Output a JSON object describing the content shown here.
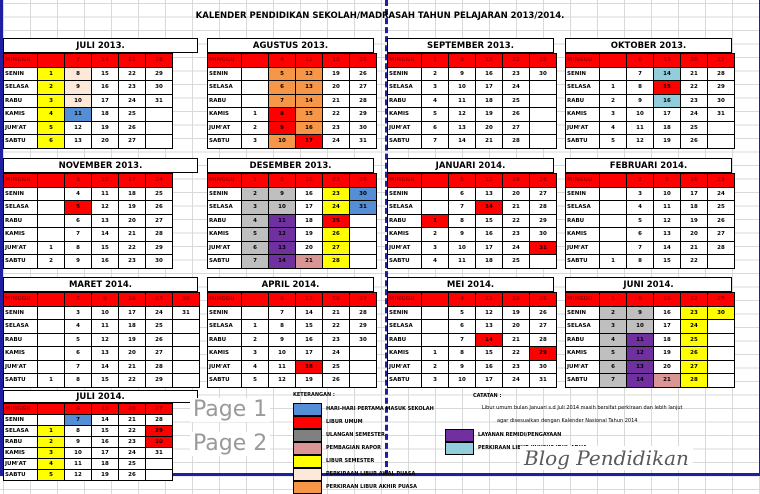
{
  "title": "KALENDER PENDIDIKAN SEKOLAH/MADRASAH TAHUN PELAJARAN 2013/2014.",
  "row_labels": [
    "MINGGU",
    "SENIN",
    "SELASA",
    "RABU",
    "KAMIS",
    "JUM'AT",
    "SABTU"
  ],
  "colors": {
    "masuk": "#558ed5",
    "libur": "#ff0000",
    "ulangan": "#bfbfbf",
    "rapor": "#da9694",
    "semester": "#ffff00",
    "awal": "#fde9d9",
    "akhir": "#f79646",
    "remidi": "#7030a0",
    "idul": "#92cddc"
  },
  "months": [
    {
      "title": "JULI 2013.",
      "weeks": [
        [
          "",
          1,
          2,
          3,
          4,
          5,
          6
        ],
        [
          7,
          8,
          9,
          10,
          11,
          12,
          13
        ],
        [
          14,
          15,
          16,
          17,
          18,
          19,
          20
        ],
        [
          21,
          22,
          23,
          24,
          25,
          26,
          27
        ],
        [
          28,
          29,
          30,
          31,
          "",
          "",
          ""
        ]
      ],
      "marks": {
        "1": "semester",
        "2": "semester",
        "3": "semester",
        "4": "semester",
        "5": "semester",
        "6": "semester",
        "8": "awal",
        "9": "awal",
        "10": "awal",
        "11": "masuk"
      }
    },
    {
      "title": "AGUSTUS 2013.",
      "weeks": [
        [
          "",
          "",
          "",
          "",
          1,
          2,
          3
        ],
        [
          4,
          5,
          6,
          7,
          8,
          9,
          10
        ],
        [
          11,
          12,
          13,
          14,
          15,
          16,
          17
        ],
        [
          18,
          19,
          20,
          21,
          22,
          23,
          24
        ],
        [
          25,
          26,
          27,
          28,
          29,
          30,
          31
        ]
      ],
      "marks": {
        "5": "akhir",
        "6": "akhir",
        "7": "akhir",
        "8": "libur",
        "9": "libur",
        "10": "akhir",
        "12": "akhir",
        "13": "akhir",
        "14": "akhir",
        "15": "akhir",
        "16": "akhir",
        "17": "libur"
      }
    },
    {
      "title": "SEPTEMBER 2013.",
      "weeks": [
        [
          1,
          2,
          3,
          4,
          5,
          6,
          7
        ],
        [
          8,
          9,
          10,
          11,
          12,
          13,
          14
        ],
        [
          15,
          16,
          17,
          18,
          19,
          20,
          21
        ],
        [
          22,
          23,
          24,
          25,
          26,
          27,
          28
        ],
        [
          29,
          30,
          "",
          "",
          "",
          "",
          ""
        ]
      ],
      "marks": {}
    },
    {
      "title": "OKTOBER 2013.",
      "weeks": [
        [
          "",
          "",
          1,
          2,
          3,
          4,
          5
        ],
        [
          6,
          7,
          8,
          9,
          10,
          11,
          12
        ],
        [
          13,
          14,
          15,
          16,
          17,
          18,
          19
        ],
        [
          20,
          21,
          22,
          23,
          24,
          25,
          26
        ],
        [
          27,
          28,
          29,
          30,
          31,
          "",
          ""
        ]
      ],
      "marks": {
        "14": "idul",
        "15": "libur",
        "16": "idul"
      }
    },
    {
      "title": "NOVEMBER 2013.",
      "weeks": [
        [
          "",
          "",
          "",
          "",
          "",
          1,
          2
        ],
        [
          3,
          4,
          5,
          6,
          7,
          8,
          9
        ],
        [
          10,
          11,
          12,
          13,
          14,
          15,
          16
        ],
        [
          17,
          18,
          19,
          20,
          21,
          22,
          23
        ],
        [
          24,
          25,
          26,
          27,
          28,
          29,
          30
        ]
      ],
      "marks": {
        "5": "libur"
      }
    },
    {
      "title": "DESEMBER 2013.",
      "weeks": [
        [
          1,
          2,
          3,
          4,
          5,
          6,
          7
        ],
        [
          8,
          9,
          10,
          11,
          12,
          13,
          14
        ],
        [
          15,
          16,
          17,
          18,
          19,
          20,
          21
        ],
        [
          22,
          23,
          24,
          25,
          26,
          27,
          28
        ],
        [
          29,
          30,
          31,
          "",
          "",
          "",
          ""
        ]
      ],
      "marks": {
        "2": "ulangan",
        "3": "ulangan",
        "4": "ulangan",
        "5": "ulangan",
        "6": "ulangan",
        "7": "ulangan",
        "9": "ulangan",
        "10": "ulangan",
        "11": "remidi",
        "12": "remidi",
        "13": "remidi",
        "14": "remidi",
        "21": "rapor",
        "23": "semester",
        "24": "semester",
        "25": "libur",
        "26": "semester",
        "27": "semester",
        "28": "semester",
        "30": "masuk",
        "31": "masuk"
      }
    },
    {
      "title": "JANUARI 2014.",
      "weeks": [
        [
          "",
          "",
          "",
          1,
          2,
          3,
          4
        ],
        [
          5,
          6,
          7,
          8,
          9,
          10,
          11
        ],
        [
          12,
          13,
          14,
          15,
          16,
          17,
          18
        ],
        [
          19,
          20,
          21,
          22,
          23,
          24,
          25
        ],
        [
          26,
          27,
          28,
          29,
          30,
          31,
          ""
        ]
      ],
      "marks": {
        "1": "libur",
        "14": "libur",
        "31": "libur"
      }
    },
    {
      "title": "FEBRUARI 2014.",
      "weeks": [
        [
          "",
          "",
          "",
          "",
          "",
          "",
          1
        ],
        [
          2,
          3,
          4,
          5,
          6,
          7,
          8
        ],
        [
          9,
          10,
          11,
          12,
          13,
          14,
          15
        ],
        [
          16,
          17,
          18,
          19,
          20,
          21,
          22
        ],
        [
          23,
          24,
          25,
          26,
          27,
          28,
          ""
        ]
      ],
      "marks": {}
    },
    {
      "title": "MARET 2014.",
      "weeks": [
        [
          "",
          "",
          "",
          "",
          "",
          "",
          1
        ],
        [
          2,
          3,
          4,
          5,
          6,
          7,
          8
        ],
        [
          9,
          10,
          11,
          12,
          13,
          14,
          15
        ],
        [
          16,
          17,
          18,
          19,
          20,
          21,
          22
        ],
        [
          23,
          24,
          25,
          26,
          27,
          28,
          29
        ],
        [
          30,
          31,
          "",
          "",
          "",
          "",
          ""
        ]
      ],
      "marks": {}
    },
    {
      "title": "APRIL 2014.",
      "weeks": [
        [
          "",
          "",
          1,
          2,
          3,
          4,
          5
        ],
        [
          6,
          7,
          8,
          9,
          10,
          11,
          12
        ],
        [
          13,
          14,
          15,
          16,
          17,
          18,
          19
        ],
        [
          20,
          21,
          22,
          23,
          24,
          25,
          26
        ],
        [
          27,
          28,
          29,
          30,
          "",
          "",
          ""
        ]
      ],
      "marks": {
        "18": "libur"
      }
    },
    {
      "title": "MEI 2014.",
      "weeks": [
        [
          "",
          "",
          "",
          "",
          1,
          2,
          3
        ],
        [
          4,
          5,
          6,
          7,
          8,
          9,
          10
        ],
        [
          11,
          12,
          13,
          14,
          15,
          16,
          17
        ],
        [
          18,
          19,
          20,
          21,
          22,
          23,
          24
        ],
        [
          25,
          26,
          27,
          28,
          29,
          30,
          31
        ]
      ],
      "marks": {
        "14": "libur",
        "29": "libur"
      }
    },
    {
      "title": "JUNI 2014.",
      "weeks": [
        [
          1,
          2,
          3,
          4,
          5,
          6,
          7
        ],
        [
          8,
          9,
          10,
          11,
          12,
          13,
          14
        ],
        [
          15,
          16,
          17,
          18,
          19,
          20,
          21
        ],
        [
          22,
          23,
          24,
          25,
          26,
          27,
          28
        ],
        [
          29,
          30,
          "",
          "",
          "",
          "",
          ""
        ]
      ],
      "marks": {
        "2": "ulangan",
        "3": "ulangan",
        "4": "ulangan",
        "5": "ulangan",
        "6": "ulangan",
        "7": "ulangan",
        "9": "ulangan",
        "10": "ulangan",
        "11": "remidi",
        "12": "remidi",
        "13": "remidi",
        "14": "remidi",
        "21": "rapor",
        "23": "semester",
        "24": "semester",
        "25": "semester",
        "26": "semester",
        "27": "semester",
        "28": "semester",
        "30": "semester"
      }
    },
    {
      "title": "JULI 2014.",
      "weeks": [
        [
          "",
          "",
          1,
          2,
          3,
          4,
          5
        ],
        [
          6,
          7,
          8,
          9,
          10,
          11,
          12
        ],
        [
          13,
          14,
          15,
          16,
          17,
          18,
          19
        ],
        [
          20,
          21,
          22,
          23,
          24,
          25,
          26
        ],
        [
          27,
          28,
          29,
          30,
          31,
          "",
          ""
        ]
      ],
      "marks": {
        "1": "semester",
        "2": "semester",
        "3": "semester",
        "4": "semester",
        "5": "semester",
        "7": "masuk",
        "29": "libur",
        "30": "libur"
      }
    }
  ],
  "legend": {
    "title": "KETERANGAN :",
    "items": [
      {
        "key": "masuk",
        "label": "HARI-HARI PERTAMA MASUK SEKOLAH"
      },
      {
        "key": "libur",
        "label": "LIBUR UMUM"
      },
      {
        "key": "ulangan",
        "label": "ULANGAN SEMESTER",
        "swatch": "#808080"
      },
      {
        "key": "rapor",
        "label": "PEMBAGIAN RAPOR"
      },
      {
        "key": "semester",
        "label": "LIBUR SEMESTER"
      },
      {
        "key": "awal",
        "label": "PERKIRAAN LIBUR AWAL PUASA"
      },
      {
        "key": "akhir",
        "label": "PERKIRAAN LIBUR AKHIR PUASA"
      },
      {
        "key": "remidi",
        "label": "LAYANAN REMIDI/PENGAYAAN"
      },
      {
        "key": "idul",
        "label": "PERKIRAAN LIBUR KHUSUS IDUL ADHA"
      }
    ]
  },
  "notes": {
    "title": "CATATAN :",
    "line1": "Libur umum bulan Januari s.d Juli 2014 masih bersifat perkiraan dan lebih lanjut",
    "line2": "agar disesuaikan   dengan Kalender Nasional Tahun 2014"
  },
  "watermark": "Blog Pendidikan",
  "page_marks": [
    "Page 1",
    "Page 2"
  ]
}
